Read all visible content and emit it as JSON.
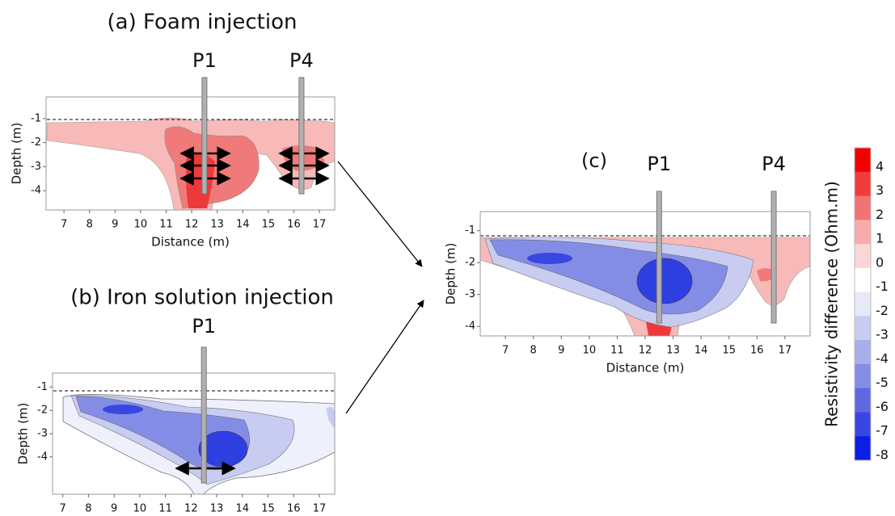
{
  "chart_data": [
    {
      "type": "contour",
      "title": "(a) Foam injection",
      "xlabel": "Distance (m)",
      "ylabel": "Depth (m)",
      "xlim": [
        6.3,
        17.6
      ],
      "ylim": [
        -4.8,
        -0.1
      ],
      "xticks": [
        7,
        8,
        9,
        10,
        11,
        12,
        13,
        14,
        15,
        16,
        17
      ],
      "yticks": [
        -1,
        -2,
        -3,
        -4
      ],
      "wells": [
        {
          "label": "P1",
          "x": 12.5
        },
        {
          "label": "P4",
          "x": 16.3
        }
      ]
    },
    {
      "type": "contour",
      "title": "(b) Iron solution injection",
      "xlabel": "Distance (m)",
      "ylabel": "Depth (m)",
      "xlim": [
        6.6,
        17.6
      ],
      "ylim": [
        -5.6,
        -0.4
      ],
      "xticks": [
        7,
        8,
        9,
        10,
        11,
        12,
        13,
        14,
        15,
        16,
        17
      ],
      "yticks": [
        -1,
        -2,
        -3,
        -4
      ],
      "wells": [
        {
          "label": "P1",
          "x": 12.5
        }
      ]
    },
    {
      "type": "contour",
      "title": "(c)",
      "xlabel": "Distance (m)",
      "ylabel": "Depth (m)",
      "xlim": [
        6.1,
        17.9
      ],
      "ylim": [
        -4.3,
        -0.4
      ],
      "xticks": [
        7,
        8,
        9,
        10,
        11,
        12,
        13,
        14,
        15,
        16,
        17
      ],
      "yticks": [
        -1,
        -2,
        -3,
        -4
      ],
      "wells": [
        {
          "label": "P1",
          "x": 12.5
        },
        {
          "label": "P4",
          "x": 16.6
        }
      ]
    }
  ],
  "colorbar": {
    "label": "Resistivity difference (Ohm.m)",
    "ticks": [
      4,
      3,
      2,
      1,
      0,
      -1,
      -2,
      -3,
      -4,
      -5,
      -6,
      -7,
      -8
    ],
    "colors": [
      "#f20000",
      "#f03b3b",
      "#f37272",
      "#f8abab",
      "#fbd6d6",
      "#ffffff",
      "#e7e9f8",
      "#c8ccf1",
      "#a7aeeb",
      "#848de6",
      "#5e69e3",
      "#3947e2",
      "#0a1ee6"
    ]
  }
}
